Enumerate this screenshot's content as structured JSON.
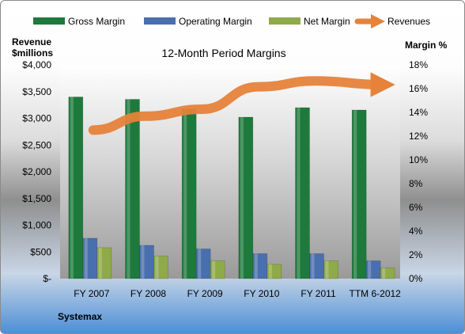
{
  "chart_data": {
    "type": "bar",
    "title": "12-Month Period Margins",
    "company": "Systemax",
    "left_axis_label_line1": "Revenue",
    "left_axis_label_line2": "$millions",
    "right_axis_label": "Margin %",
    "categories": [
      "FY 2007",
      "FY 2008",
      "FY 2009",
      "FY 2010",
      "FY 2011",
      "TTM 6-2012"
    ],
    "left_ticks": [
      "$-",
      "$500",
      "$1,000",
      "$1,500",
      "$2,000",
      "$2,500",
      "$3,000",
      "$3,500",
      "$4,000"
    ],
    "right_ticks": [
      "0%",
      "2%",
      "4%",
      "6%",
      "8%",
      "10%",
      "12%",
      "14%",
      "16%",
      "18%"
    ],
    "ylim_left": [
      0,
      4000
    ],
    "ylim_right": [
      0,
      18
    ],
    "series": [
      {
        "name": "Gross Margin",
        "axis": "right",
        "color": "#1e7a3c",
        "values": [
          15.3,
          15.1,
          14.3,
          13.6,
          14.4,
          14.2
        ]
      },
      {
        "name": "Operating Margin",
        "axis": "right",
        "color": "#4a6fae",
        "values": [
          3.4,
          2.8,
          2.5,
          2.1,
          2.1,
          1.5
        ]
      },
      {
        "name": "Net Margin",
        "axis": "right",
        "color": "#8faa48",
        "values": [
          2.6,
          1.9,
          1.5,
          1.2,
          1.5,
          0.9
        ]
      },
      {
        "name": "Revenues",
        "axis": "left",
        "color": "#e6823a",
        "values": [
          2780,
          3040,
          3170,
          3590,
          3700,
          3630
        ]
      }
    ],
    "grid": false,
    "legend_position": "top"
  }
}
